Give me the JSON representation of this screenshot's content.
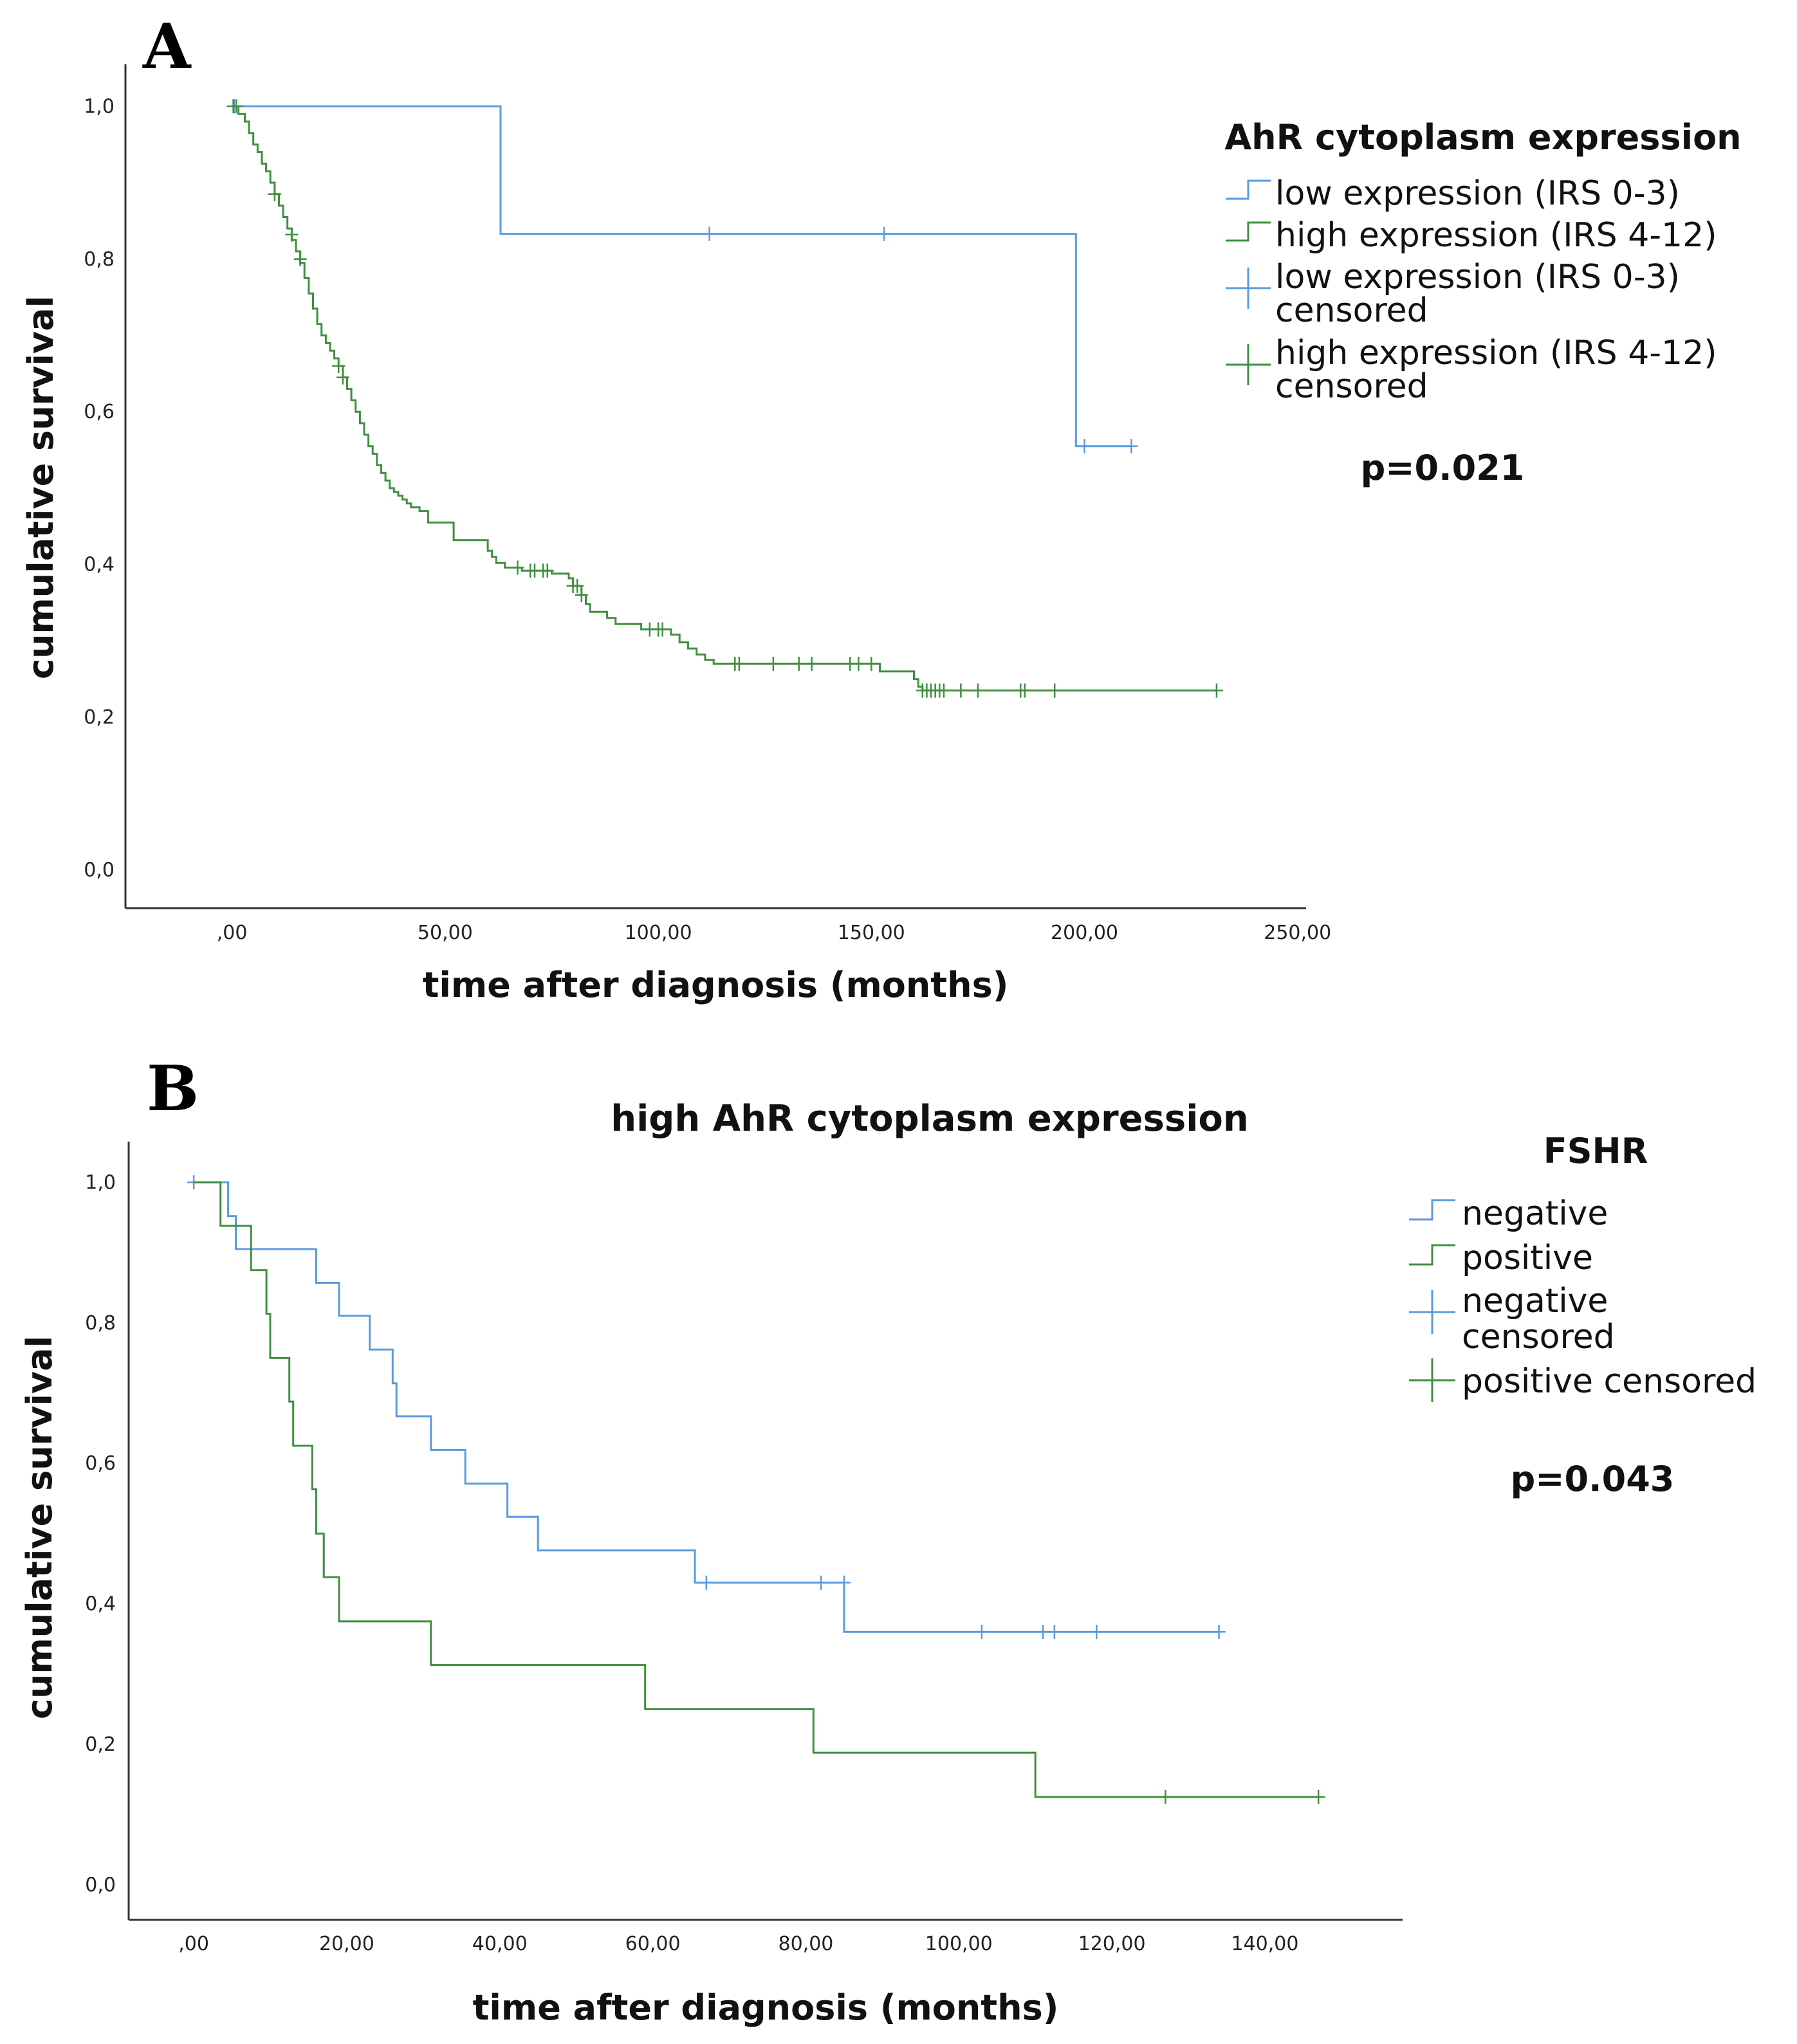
{
  "chart_data": [
    {
      "type": "line",
      "panel_label": "A",
      "title": "",
      "xlabel": "time after diagnosis (months)",
      "ylabel": "cumulative survival",
      "xlim": [
        -25,
        252
      ],
      "ylim": [
        -0.05,
        1.055
      ],
      "x_ticks": [
        0,
        50,
        100,
        150,
        200,
        250
      ],
      "x_tick_labels": [
        ",00",
        "50,00",
        "100,00",
        "150,00",
        "200,00",
        "250,00"
      ],
      "y_ticks": [
        0,
        0.2,
        0.4,
        0.6,
        0.8,
        1.0
      ],
      "y_tick_labels": [
        "0,0",
        "0,2",
        "0,4",
        "0,6",
        "0,8",
        "1,0"
      ],
      "legend_title": "AhR cytoplasm expression",
      "legend": [
        {
          "lines": [
            "low expression (IRS 0-3)"
          ],
          "marker": "step",
          "color": "#5a9bdc"
        },
        {
          "lines": [
            "high expression (IRS 4-12)"
          ],
          "marker": "step",
          "color": "#3f8f3f"
        },
        {
          "lines": [
            "low expression (IRS 0-3)",
            "censored"
          ],
          "marker": "cross",
          "color": "#5a9bdc"
        },
        {
          "lines": [
            "high expression (IRS 4-12)",
            "censored"
          ],
          "marker": "cross",
          "color": "#3f8f3f"
        }
      ],
      "p_value": "p=0.021",
      "series": [
        {
          "name": "low expression (IRS 0-3)",
          "color": "#5a9bdc",
          "steps": [
            [
              0,
              1.0
            ],
            [
              63,
              0.833
            ],
            [
              198,
              0.555
            ]
          ],
          "end_x": 211,
          "censored": [
            [
              0.5,
              1.0
            ],
            [
              112,
              0.833
            ],
            [
              153,
              0.833
            ],
            [
              200,
              0.555
            ],
            [
              211,
              0.555
            ]
          ]
        },
        {
          "name": "high expression (IRS 4-12)",
          "color": "#3f8f3f",
          "steps": [
            [
              0,
              1.0
            ],
            [
              1.5,
              0.99
            ],
            [
              3,
              0.98
            ],
            [
              4,
              0.965
            ],
            [
              5,
              0.95
            ],
            [
              6,
              0.94
            ],
            [
              7,
              0.925
            ],
            [
              8,
              0.915
            ],
            [
              9,
              0.9
            ],
            [
              10,
              0.885
            ],
            [
              11,
              0.87
            ],
            [
              12,
              0.855
            ],
            [
              13,
              0.84
            ],
            [
              14,
              0.825
            ],
            [
              15,
              0.81
            ],
            [
              16,
              0.795
            ],
            [
              17,
              0.775
            ],
            [
              18,
              0.755
            ],
            [
              19,
              0.735
            ],
            [
              20,
              0.715
            ],
            [
              21,
              0.7
            ],
            [
              22,
              0.69
            ],
            [
              23,
              0.68
            ],
            [
              24,
              0.67
            ],
            [
              25,
              0.66
            ],
            [
              26,
              0.645
            ],
            [
              27,
              0.63
            ],
            [
              28,
              0.615
            ],
            [
              29,
              0.6
            ],
            [
              30,
              0.585
            ],
            [
              31,
              0.57
            ],
            [
              32,
              0.555
            ],
            [
              33,
              0.545
            ],
            [
              34,
              0.53
            ],
            [
              35,
              0.52
            ],
            [
              36,
              0.51
            ],
            [
              37,
              0.5
            ],
            [
              38,
              0.495
            ],
            [
              39,
              0.49
            ],
            [
              40,
              0.485
            ],
            [
              41,
              0.48
            ],
            [
              42,
              0.475
            ],
            [
              44,
              0.47
            ],
            [
              46,
              0.455
            ],
            [
              50,
              0.455
            ],
            [
              52,
              0.432
            ],
            [
              59,
              0.432
            ],
            [
              60,
              0.418
            ],
            [
              61,
              0.41
            ],
            [
              62,
              0.402
            ],
            [
              64,
              0.396
            ],
            [
              68,
              0.392
            ],
            [
              75,
              0.388
            ],
            [
              79,
              0.382
            ],
            [
              80,
              0.372
            ],
            [
              82,
              0.36
            ],
            [
              83,
              0.348
            ],
            [
              84,
              0.338
            ],
            [
              88,
              0.33
            ],
            [
              90,
              0.322
            ],
            [
              96,
              0.315
            ],
            [
              103,
              0.308
            ],
            [
              105,
              0.298
            ],
            [
              107,
              0.29
            ],
            [
              109,
              0.282
            ],
            [
              111,
              0.275
            ],
            [
              113,
              0.27
            ],
            [
              152,
              0.26
            ],
            [
              160,
              0.25
            ],
            [
              161,
              0.24
            ],
            [
              162,
              0.235
            ]
          ],
          "end_x": 231,
          "censored": [
            [
              0.3,
              1.0
            ],
            [
              1,
              1.0
            ],
            [
              10,
              0.885
            ],
            [
              14,
              0.832
            ],
            [
              16,
              0.8
            ],
            [
              25,
              0.66
            ],
            [
              26,
              0.645
            ],
            [
              67,
              0.396
            ],
            [
              70,
              0.392
            ],
            [
              71,
              0.392
            ],
            [
              73,
              0.392
            ],
            [
              74,
              0.392
            ],
            [
              80,
              0.372
            ],
            [
              81,
              0.372
            ],
            [
              82,
              0.36
            ],
            [
              98,
              0.315
            ],
            [
              100,
              0.315
            ],
            [
              101,
              0.315
            ],
            [
              118,
              0.27
            ],
            [
              119,
              0.27
            ],
            [
              127,
              0.27
            ],
            [
              133,
              0.27
            ],
            [
              136,
              0.27
            ],
            [
              145,
              0.27
            ],
            [
              147,
              0.27
            ],
            [
              150,
              0.27
            ],
            [
              162,
              0.235
            ],
            [
              163,
              0.235
            ],
            [
              164,
              0.235
            ],
            [
              165,
              0.235
            ],
            [
              166,
              0.235
            ],
            [
              167,
              0.235
            ],
            [
              171,
              0.235
            ],
            [
              175,
              0.235
            ],
            [
              185,
              0.235
            ],
            [
              186,
              0.235
            ],
            [
              193,
              0.235
            ],
            [
              231,
              0.235
            ]
          ]
        }
      ]
    },
    {
      "type": "line",
      "panel_label": "B",
      "title": "high AhR cytoplasm expression",
      "xlabel": "time after diagnosis (months)",
      "ylabel": "cumulative survival",
      "xlim": [
        -8.5,
        158
      ],
      "ylim": [
        -0.05,
        1.058
      ],
      "x_ticks": [
        0,
        20,
        40,
        60,
        80,
        100,
        120,
        140
      ],
      "x_tick_labels": [
        ",00",
        "20,00",
        "40,00",
        "60,00",
        "80,00",
        "100,00",
        "120,00",
        "140,00"
      ],
      "y_ticks": [
        0,
        0.2,
        0.4,
        0.6,
        0.8,
        1.0
      ],
      "y_tick_labels": [
        "0,0",
        "0,2",
        "0,4",
        "0,6",
        "0,8",
        "1,0"
      ],
      "legend_title": "FSHR",
      "legend": [
        {
          "lines": [
            "negative"
          ],
          "marker": "step",
          "color": "#5a9bdc"
        },
        {
          "lines": [
            "positive"
          ],
          "marker": "step",
          "color": "#3f8f3f"
        },
        {
          "lines": [
            "negative",
            "censored"
          ],
          "marker": "cross",
          "color": "#5a9bdc"
        },
        {
          "lines": [
            "positive censored"
          ],
          "marker": "cross",
          "color": "#3f8f3f"
        }
      ],
      "p_value": "p=0.043",
      "series": [
        {
          "name": "negative",
          "color": "#5a9bdc",
          "steps": [
            [
              0,
              1.0
            ],
            [
              4.5,
              0.952
            ],
            [
              5.5,
              0.905
            ],
            [
              16,
              0.857
            ],
            [
              19,
              0.81
            ],
            [
              23,
              0.762
            ],
            [
              26,
              0.714
            ],
            [
              26.5,
              0.667
            ],
            [
              31,
              0.619
            ],
            [
              35.5,
              0.571
            ],
            [
              41,
              0.524
            ],
            [
              45,
              0.476
            ],
            [
              65.5,
              0.43
            ],
            [
              85,
              0.36
            ]
          ],
          "end_x": 134,
          "censored": [
            [
              0,
              1.0
            ],
            [
              67,
              0.43
            ],
            [
              82,
              0.43
            ],
            [
              85,
              0.43
            ],
            [
              103,
              0.36
            ],
            [
              111,
              0.36
            ],
            [
              112.5,
              0.36
            ],
            [
              118,
              0.36
            ],
            [
              134,
              0.36
            ]
          ]
        },
        {
          "name": "positive",
          "color": "#3f8f3f",
          "steps": [
            [
              0,
              1.0
            ],
            [
              3.5,
              0.938
            ],
            [
              7.5,
              0.875
            ],
            [
              9.5,
              0.813
            ],
            [
              10,
              0.75
            ],
            [
              12.5,
              0.688
            ],
            [
              13,
              0.625
            ],
            [
              15.5,
              0.563
            ],
            [
              16,
              0.5
            ],
            [
              17,
              0.438
            ],
            [
              19,
              0.375
            ],
            [
              31,
              0.313
            ],
            [
              59,
              0.25
            ],
            [
              81,
              0.188
            ],
            [
              110,
              0.125
            ]
          ],
          "end_x": 147,
          "censored": [
            [
              127,
              0.125
            ],
            [
              147,
              0.125
            ]
          ]
        }
      ]
    }
  ]
}
